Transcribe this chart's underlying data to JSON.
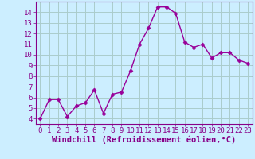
{
  "x": [
    0,
    1,
    2,
    3,
    4,
    5,
    6,
    7,
    8,
    9,
    10,
    11,
    12,
    13,
    14,
    15,
    16,
    17,
    18,
    19,
    20,
    21,
    22,
    23
  ],
  "y": [
    4.0,
    5.8,
    5.8,
    4.2,
    5.2,
    5.5,
    6.7,
    4.5,
    6.3,
    6.5,
    8.5,
    11.0,
    12.5,
    14.5,
    14.5,
    13.9,
    11.2,
    10.7,
    11.0,
    9.7,
    10.2,
    10.2,
    9.5,
    9.2
  ],
  "xlim": [
    -0.5,
    23.5
  ],
  "ylim": [
    3.5,
    15.0
  ],
  "yticks": [
    4,
    5,
    6,
    7,
    8,
    9,
    10,
    11,
    12,
    13,
    14
  ],
  "xticks": [
    0,
    1,
    2,
    3,
    4,
    5,
    6,
    7,
    8,
    9,
    10,
    11,
    12,
    13,
    14,
    15,
    16,
    17,
    18,
    19,
    20,
    21,
    22,
    23
  ],
  "xlabel": "Windchill (Refroidissement éolien,°C)",
  "line_color": "#990099",
  "marker": "D",
  "marker_size": 2.5,
  "bg_color": "#cceeff",
  "grid_color": "#aacccc",
  "tick_color": "#880088",
  "label_color": "#880088",
  "tick_label_fontsize": 6.5,
  "xlabel_fontsize": 7.5
}
